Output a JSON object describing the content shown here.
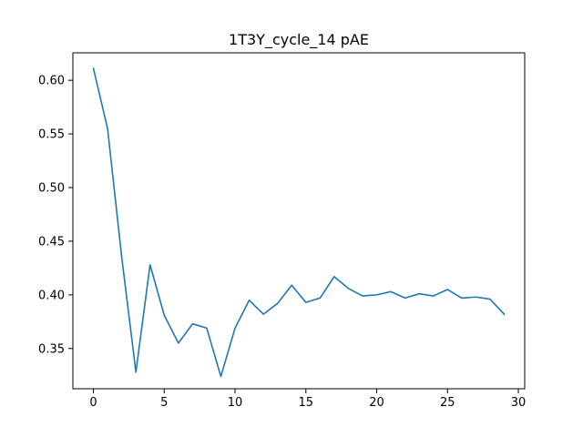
{
  "chart_data": {
    "type": "line",
    "title": "1T3Y_cycle_14 pAE",
    "xlabel": "",
    "ylabel": "",
    "xlim": [
      -1.45,
      30.45
    ],
    "ylim": [
      0.3125,
      0.6256
    ],
    "xticks": [
      0,
      5,
      10,
      15,
      20,
      25,
      30
    ],
    "yticks": [
      0.35,
      0.4,
      0.45,
      0.5,
      0.55,
      0.6
    ],
    "xtick_labels": [
      "0",
      "5",
      "10",
      "15",
      "20",
      "25",
      "30"
    ],
    "ytick_labels": [
      "0.35",
      "0.40",
      "0.45",
      "0.50",
      "0.55",
      "0.60"
    ],
    "grid": false,
    "legend": "none",
    "series": [
      {
        "color": "#1f77b4",
        "x": [
          0,
          1,
          2,
          3,
          4,
          5,
          6,
          7,
          8,
          9,
          10,
          11,
          12,
          13,
          14,
          15,
          16,
          17,
          18,
          19,
          20,
          21,
          22,
          23,
          24,
          25,
          26,
          27,
          28,
          29
        ],
        "values": [
          0.611,
          0.555,
          0.435,
          0.328,
          0.428,
          0.381,
          0.355,
          0.373,
          0.369,
          0.324,
          0.369,
          0.395,
          0.382,
          0.392,
          0.409,
          0.393,
          0.397,
          0.417,
          0.406,
          0.399,
          0.4,
          0.403,
          0.397,
          0.401,
          0.399,
          0.405,
          0.397,
          0.398,
          0.396,
          0.382
        ]
      }
    ]
  }
}
